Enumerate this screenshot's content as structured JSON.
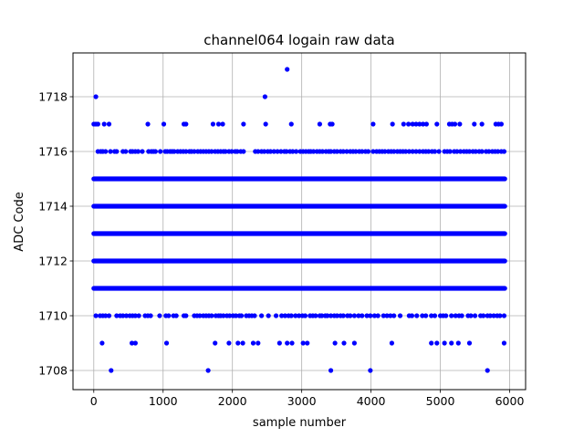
{
  "chart_data": {
    "type": "scatter",
    "title": "channel064 logain raw data",
    "xlabel": "sample number",
    "ylabel": "ADC Code",
    "xlim": [
      -300,
      6230
    ],
    "ylim": [
      1707.3,
      1719.6
    ],
    "x_ticks": [
      "0",
      "1000",
      "2000",
      "3000",
      "4000",
      "5000",
      "6000"
    ],
    "y_ticks": [
      "1708",
      "1710",
      "1712",
      "1714",
      "1716",
      "1718"
    ],
    "grid": true,
    "marker_color": "#0000ff",
    "sample_count": 5930,
    "dense_levels": [
      {
        "value": 1711,
        "x_range": [
          0,
          5930
        ]
      },
      {
        "value": 1712,
        "x_range": [
          0,
          5930
        ]
      },
      {
        "value": 1713,
        "x_range": [
          0,
          5930
        ]
      },
      {
        "value": 1714,
        "x_range": [
          0,
          5930
        ]
      },
      {
        "value": 1715,
        "x_range": [
          0,
          5930
        ]
      }
    ],
    "series": [
      {
        "value": 1716,
        "x": [
          60,
          100,
          130,
          170,
          240,
          300,
          330,
          420,
          460,
          530,
          560,
          600,
          640,
          700,
          790,
          830,
          860,
          890,
          960,
          1030,
          1060,
          1100,
          1130,
          1160,
          1210,
          1250,
          1290,
          1330,
          1380,
          1410,
          1450,
          1500,
          1540,
          1580,
          1620,
          1660,
          1700,
          1750,
          1790,
          1830,
          1870,
          1900,
          1950,
          1990,
          2040,
          2070,
          2120,
          2160,
          2330,
          2370,
          2420,
          2460,
          2510,
          2550,
          2600,
          2650,
          2700,
          2750,
          2780,
          2830,
          2870,
          2920,
          2980,
          3020,
          3060,
          3100,
          3130,
          3170,
          3220,
          3260,
          3300,
          3350,
          3390,
          3420,
          3470,
          3510,
          3560,
          3600,
          3650,
          3700,
          3740,
          3780,
          3830,
          3870,
          3920,
          3960,
          4030,
          4080,
          4120,
          4160,
          4200,
          4250,
          4290,
          4330,
          4380,
          4420,
          4460,
          4500,
          4550,
          4600,
          4650,
          4700,
          4750,
          4790,
          4830,
          4880,
          4920,
          4980,
          5060,
          5100,
          5140,
          5200,
          5240,
          5290,
          5340,
          5380,
          5420,
          5470,
          5510,
          5560,
          5600,
          5660,
          5700,
          5750,
          5790,
          5830,
          5880,
          5920
        ]
      },
      {
        "value": 1717,
        "x": [
          0,
          30,
          60,
          150,
          220,
          780,
          1010,
          1300,
          1330,
          1720,
          1800,
          1860,
          2160,
          2480,
          2850,
          3260,
          3410,
          3440,
          4030,
          4310,
          4470,
          4540,
          4600,
          4650,
          4700,
          4750,
          4800,
          4950,
          5130,
          5170,
          5210,
          5280,
          5490,
          5600,
          5800,
          5840,
          5880
        ]
      },
      {
        "value": 1718,
        "x": [
          30,
          2470
        ]
      },
      {
        "value": 1719,
        "x": [
          2790
        ]
      },
      {
        "value": 1710,
        "x": [
          30,
          90,
          130,
          170,
          220,
          330,
          380,
          420,
          470,
          520,
          560,
          600,
          650,
          740,
          780,
          820,
          950,
          1040,
          1080,
          1150,
          1190,
          1300,
          1330,
          1450,
          1490,
          1530,
          1580,
          1620,
          1660,
          1700,
          1760,
          1800,
          1830,
          1870,
          1920,
          1960,
          2010,
          2050,
          2100,
          2130,
          2200,
          2240,
          2280,
          2320,
          2420,
          2520,
          2630,
          2710,
          2760,
          2810,
          2850,
          2910,
          2960,
          3010,
          3050,
          3120,
          3160,
          3200,
          3260,
          3290,
          3340,
          3370,
          3420,
          3470,
          3510,
          3560,
          3600,
          3660,
          3700,
          3760,
          3820,
          3870,
          3940,
          3990,
          4050,
          4100,
          4180,
          4230,
          4280,
          4330,
          4420,
          4550,
          4590,
          4660,
          4740,
          4790,
          4870,
          4920,
          5000,
          5040,
          5080,
          5160,
          5220,
          5270,
          5310,
          5400,
          5440,
          5500,
          5580,
          5620,
          5680,
          5720,
          5770,
          5820,
          5860,
          5920
        ]
      },
      {
        "value": 1709,
        "x": [
          120,
          550,
          600,
          1050,
          1750,
          1950,
          2080,
          2150,
          2300,
          2370,
          2680,
          2790,
          2860,
          3020,
          3080,
          3480,
          3610,
          3760,
          4300,
          4870,
          4950,
          5060,
          5160,
          5260,
          5420,
          5920
        ]
      },
      {
        "value": 1708,
        "x": [
          250,
          1650,
          3420,
          3990,
          5680
        ]
      }
    ]
  }
}
